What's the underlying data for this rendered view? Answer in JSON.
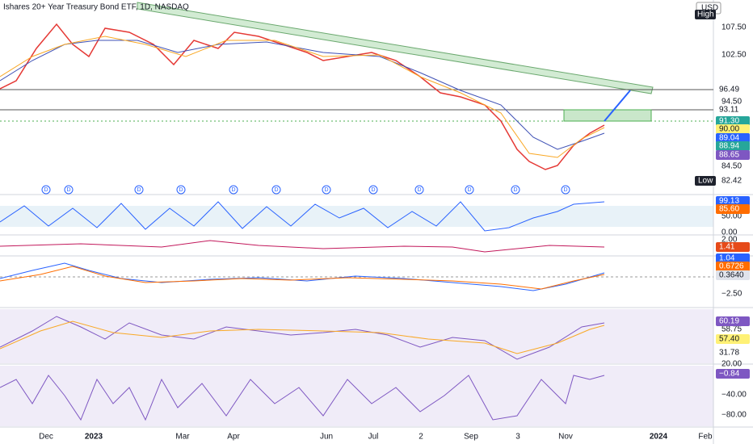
{
  "header": {
    "title": "Ishares 20+ Year Treasury Bond ETF, 1D, NASDAQ",
    "currency": "USD"
  },
  "price_axis": {
    "high": "High",
    "ticks": [
      "107.50",
      "102.50",
      "94.50",
      "84.50"
    ],
    "badges": [
      "96.49",
      "93.11",
      "91.30",
      "90.00",
      "89.04",
      "88.94",
      "88.65"
    ],
    "low": "Low",
    "low_value": "82.42"
  },
  "panels": [
    {
      "ticks": [
        "50.00",
        "0.00"
      ],
      "badges": [
        "99.13",
        "85.60"
      ]
    },
    {
      "ticks": [
        "2.00"
      ],
      "badges": [
        "1.41"
      ]
    },
    {
      "ticks": [
        "−2.50"
      ],
      "badges": [
        "1.04",
        "0.6726",
        "0.3640"
      ]
    },
    {
      "ticks": [
        "58.75",
        "20.00"
      ],
      "badges": [
        "60.19",
        "57.40",
        "31.78"
      ]
    },
    {
      "ticks": [
        "−40.00",
        "−80.00"
      ],
      "badges": [
        "−0.84"
      ]
    }
  ],
  "dividend_marker": "D",
  "time_axis": [
    "Dec",
    "2023",
    "Mar",
    "Apr",
    "Jun",
    "Jul",
    "2",
    "Sep",
    "3",
    "Nov",
    "2024",
    "Feb"
  ]
}
